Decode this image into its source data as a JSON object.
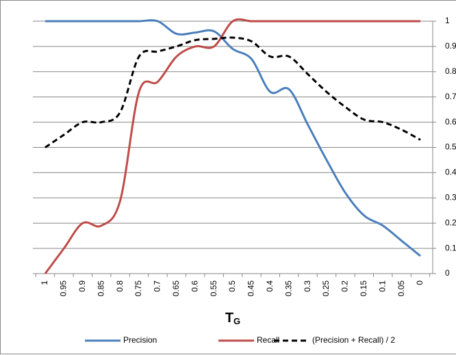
{
  "chart_data": {
    "type": "line",
    "xlabel": "T",
    "xlabel_subscript": "G",
    "categories": [
      "1",
      "0.95",
      "0.9",
      "0.85",
      "0.8",
      "0.75",
      "0.7",
      "0.65",
      "0.6",
      "0.55",
      "0.5",
      "0.45",
      "0.4",
      "0.35",
      "0.3",
      "0.25",
      "0.2",
      "0.15",
      "0.1",
      "0.05",
      "0"
    ],
    "series": [
      {
        "name": "Precision",
        "color": "#4a7ebb",
        "dash": false,
        "values": [
          1,
          1,
          1,
          1,
          1,
          1,
          1,
          0.95,
          0.955,
          0.96,
          0.89,
          0.85,
          0.72,
          0.73,
          0.59,
          0.45,
          0.32,
          0.23,
          0.19,
          0.13,
          0.07
        ]
      },
      {
        "name": "Recall",
        "color": "#be4b48",
        "dash": false,
        "values": [
          0,
          0.1,
          0.2,
          0.19,
          0.29,
          0.72,
          0.76,
          0.86,
          0.9,
          0.9,
          1,
          1,
          1,
          1,
          1,
          1,
          1,
          1,
          1,
          1,
          1
        ]
      },
      {
        "name": "(Precision + Recall) / 2",
        "color": "#000000",
        "dash": true,
        "values": [
          0.5,
          0.55,
          0.6,
          0.6,
          0.64,
          0.86,
          0.88,
          0.9,
          0.925,
          0.93,
          0.935,
          0.92,
          0.86,
          0.86,
          0.79,
          0.72,
          0.66,
          0.61,
          0.6,
          0.57,
          0.53
        ]
      }
    ],
    "ylim": [
      0,
      1
    ],
    "yticks": [
      0,
      0.1,
      0.2,
      0.3,
      0.4,
      0.5,
      0.6,
      0.7,
      0.8,
      0.9,
      1
    ],
    "grid": true,
    "yaxis_side": "right",
    "legend": "bottom"
  }
}
